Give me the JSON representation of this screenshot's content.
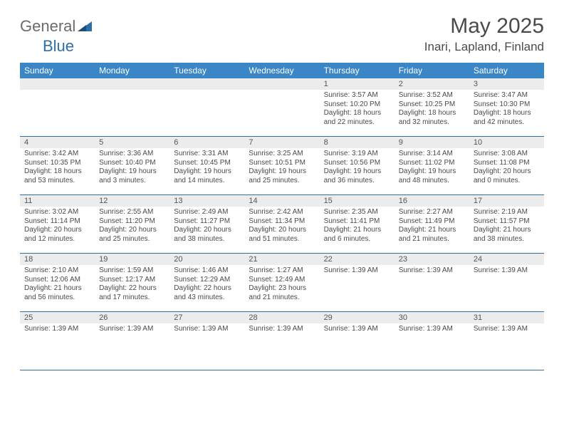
{
  "brand": {
    "general": "General",
    "blue": "Blue"
  },
  "title": "May 2025",
  "location": "Inari, Lapland, Finland",
  "colors": {
    "header_bg": "#3a86c6",
    "header_text": "#ffffff",
    "cell_border": "#2f6fa8",
    "daynum_bg": "#ececec",
    "text": "#4a4a4a"
  },
  "days_of_week": [
    "Sunday",
    "Monday",
    "Tuesday",
    "Wednesday",
    "Thursday",
    "Friday",
    "Saturday"
  ],
  "weeks": [
    [
      {
        "n": "",
        "sr": "",
        "ss": "",
        "dl1": "",
        "dl2": ""
      },
      {
        "n": "",
        "sr": "",
        "ss": "",
        "dl1": "",
        "dl2": ""
      },
      {
        "n": "",
        "sr": "",
        "ss": "",
        "dl1": "",
        "dl2": ""
      },
      {
        "n": "",
        "sr": "",
        "ss": "",
        "dl1": "",
        "dl2": ""
      },
      {
        "n": "1",
        "sr": "Sunrise: 3:57 AM",
        "ss": "Sunset: 10:20 PM",
        "dl1": "Daylight: 18 hours",
        "dl2": "and 22 minutes."
      },
      {
        "n": "2",
        "sr": "Sunrise: 3:52 AM",
        "ss": "Sunset: 10:25 PM",
        "dl1": "Daylight: 18 hours",
        "dl2": "and 32 minutes."
      },
      {
        "n": "3",
        "sr": "Sunrise: 3:47 AM",
        "ss": "Sunset: 10:30 PM",
        "dl1": "Daylight: 18 hours",
        "dl2": "and 42 minutes."
      }
    ],
    [
      {
        "n": "4",
        "sr": "Sunrise: 3:42 AM",
        "ss": "Sunset: 10:35 PM",
        "dl1": "Daylight: 18 hours",
        "dl2": "and 53 minutes."
      },
      {
        "n": "5",
        "sr": "Sunrise: 3:36 AM",
        "ss": "Sunset: 10:40 PM",
        "dl1": "Daylight: 19 hours",
        "dl2": "and 3 minutes."
      },
      {
        "n": "6",
        "sr": "Sunrise: 3:31 AM",
        "ss": "Sunset: 10:45 PM",
        "dl1": "Daylight: 19 hours",
        "dl2": "and 14 minutes."
      },
      {
        "n": "7",
        "sr": "Sunrise: 3:25 AM",
        "ss": "Sunset: 10:51 PM",
        "dl1": "Daylight: 19 hours",
        "dl2": "and 25 minutes."
      },
      {
        "n": "8",
        "sr": "Sunrise: 3:19 AM",
        "ss": "Sunset: 10:56 PM",
        "dl1": "Daylight: 19 hours",
        "dl2": "and 36 minutes."
      },
      {
        "n": "9",
        "sr": "Sunrise: 3:14 AM",
        "ss": "Sunset: 11:02 PM",
        "dl1": "Daylight: 19 hours",
        "dl2": "and 48 minutes."
      },
      {
        "n": "10",
        "sr": "Sunrise: 3:08 AM",
        "ss": "Sunset: 11:08 PM",
        "dl1": "Daylight: 20 hours",
        "dl2": "and 0 minutes."
      }
    ],
    [
      {
        "n": "11",
        "sr": "Sunrise: 3:02 AM",
        "ss": "Sunset: 11:14 PM",
        "dl1": "Daylight: 20 hours",
        "dl2": "and 12 minutes."
      },
      {
        "n": "12",
        "sr": "Sunrise: 2:55 AM",
        "ss": "Sunset: 11:20 PM",
        "dl1": "Daylight: 20 hours",
        "dl2": "and 25 minutes."
      },
      {
        "n": "13",
        "sr": "Sunrise: 2:49 AM",
        "ss": "Sunset: 11:27 PM",
        "dl1": "Daylight: 20 hours",
        "dl2": "and 38 minutes."
      },
      {
        "n": "14",
        "sr": "Sunrise: 2:42 AM",
        "ss": "Sunset: 11:34 PM",
        "dl1": "Daylight: 20 hours",
        "dl2": "and 51 minutes."
      },
      {
        "n": "15",
        "sr": "Sunrise: 2:35 AM",
        "ss": "Sunset: 11:41 PM",
        "dl1": "Daylight: 21 hours",
        "dl2": "and 6 minutes."
      },
      {
        "n": "16",
        "sr": "Sunrise: 2:27 AM",
        "ss": "Sunset: 11:49 PM",
        "dl1": "Daylight: 21 hours",
        "dl2": "and 21 minutes."
      },
      {
        "n": "17",
        "sr": "Sunrise: 2:19 AM",
        "ss": "Sunset: 11:57 PM",
        "dl1": "Daylight: 21 hours",
        "dl2": "and 38 minutes."
      }
    ],
    [
      {
        "n": "18",
        "sr": "Sunrise: 2:10 AM",
        "ss": "Sunset: 12:06 AM",
        "dl1": "Daylight: 21 hours",
        "dl2": "and 56 minutes."
      },
      {
        "n": "19",
        "sr": "Sunrise: 1:59 AM",
        "ss": "Sunset: 12:17 AM",
        "dl1": "Daylight: 22 hours",
        "dl2": "and 17 minutes."
      },
      {
        "n": "20",
        "sr": "Sunrise: 1:46 AM",
        "ss": "Sunset: 12:29 AM",
        "dl1": "Daylight: 22 hours",
        "dl2": "and 43 minutes."
      },
      {
        "n": "21",
        "sr": "Sunrise: 1:27 AM",
        "ss": "Sunset: 12:49 AM",
        "dl1": "Daylight: 23 hours",
        "dl2": "and 21 minutes."
      },
      {
        "n": "22",
        "sr": "Sunrise: 1:39 AM",
        "ss": "",
        "dl1": "",
        "dl2": ""
      },
      {
        "n": "23",
        "sr": "Sunrise: 1:39 AM",
        "ss": "",
        "dl1": "",
        "dl2": ""
      },
      {
        "n": "24",
        "sr": "Sunrise: 1:39 AM",
        "ss": "",
        "dl1": "",
        "dl2": ""
      }
    ],
    [
      {
        "n": "25",
        "sr": "Sunrise: 1:39 AM",
        "ss": "",
        "dl1": "",
        "dl2": ""
      },
      {
        "n": "26",
        "sr": "Sunrise: 1:39 AM",
        "ss": "",
        "dl1": "",
        "dl2": ""
      },
      {
        "n": "27",
        "sr": "Sunrise: 1:39 AM",
        "ss": "",
        "dl1": "",
        "dl2": ""
      },
      {
        "n": "28",
        "sr": "Sunrise: 1:39 AM",
        "ss": "",
        "dl1": "",
        "dl2": ""
      },
      {
        "n": "29",
        "sr": "Sunrise: 1:39 AM",
        "ss": "",
        "dl1": "",
        "dl2": ""
      },
      {
        "n": "30",
        "sr": "Sunrise: 1:39 AM",
        "ss": "",
        "dl1": "",
        "dl2": ""
      },
      {
        "n": "31",
        "sr": "Sunrise: 1:39 AM",
        "ss": "",
        "dl1": "",
        "dl2": ""
      }
    ]
  ]
}
